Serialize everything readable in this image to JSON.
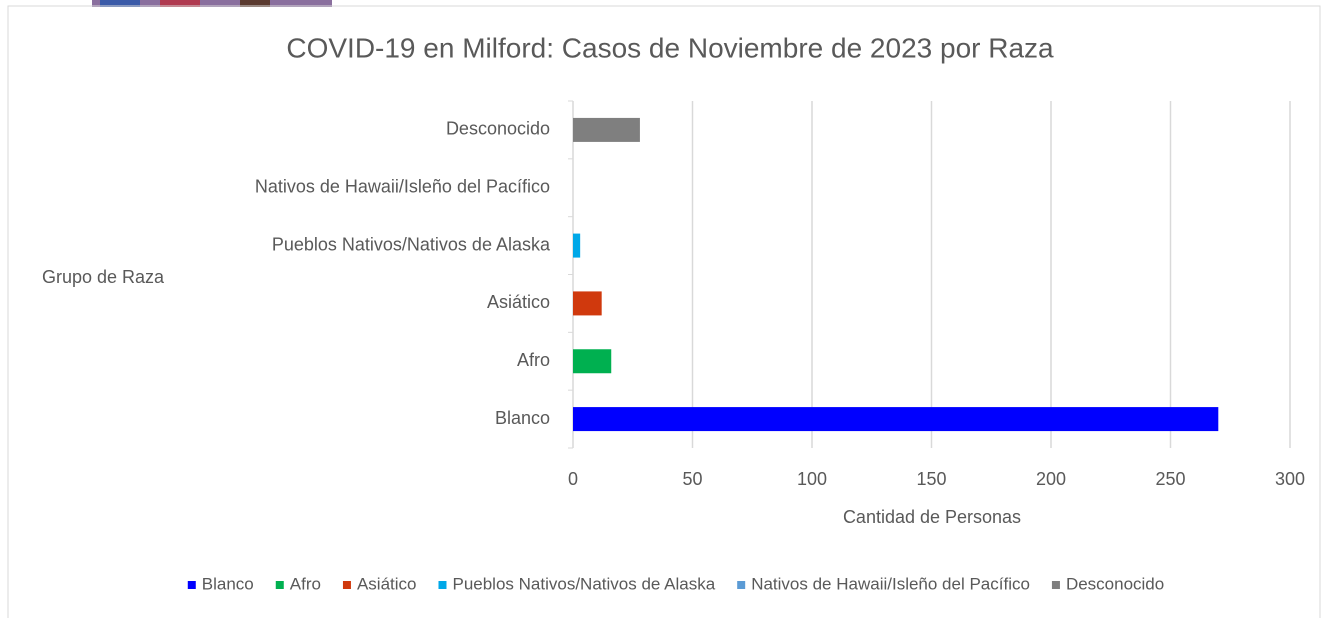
{
  "chart_data": {
    "type": "hbar",
    "title": "COVID-19 en Milford: Casos de Noviembre de 2023 por Raza",
    "x_label": "Cantidad de Personas",
    "y_label": "Grupo de Raza",
    "categories": [
      "Blanco",
      "Afro",
      "Asiático",
      "Pueblos Nativos/Nativos de Alaska",
      "Nativos de Hawaii/Isleño del Pacífico",
      "Desconocido"
    ],
    "values": [
      270,
      16,
      12,
      3,
      0,
      28
    ],
    "colors": [
      "#0000ff",
      "#00b050",
      "#d0390d",
      "#00a8e8",
      "#5b9bd5",
      "#7f7f7f"
    ],
    "xlim": [
      0,
      300
    ],
    "xticks": [
      0,
      50,
      100,
      150,
      200,
      250,
      300
    ],
    "grid": true,
    "legend": "bottom"
  }
}
